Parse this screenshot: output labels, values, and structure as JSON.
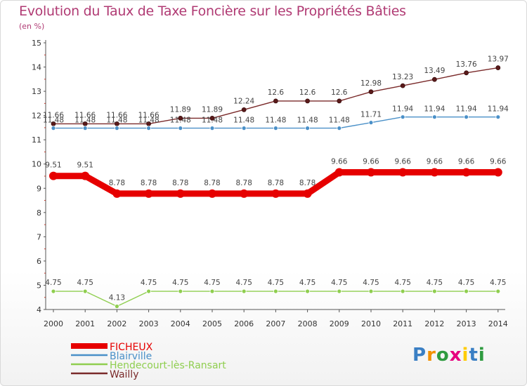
{
  "chart_data": {
    "type": "line",
    "title": "Evolution du Taux de Taxe Foncière sur les Propriétés Bâties",
    "subtitle": "(en %)",
    "xlabel": "",
    "ylabel": "",
    "x": [
      "2000",
      "2001",
      "2002",
      "2003",
      "2004",
      "2005",
      "2006",
      "2007",
      "2008",
      "2009",
      "2010",
      "2011",
      "2012",
      "2013",
      "2014"
    ],
    "ylim": [
      4,
      15
    ],
    "yticks": [
      "4",
      "5",
      "6",
      "7",
      "8",
      "9",
      "10",
      "11",
      "12",
      "13",
      "14",
      "15"
    ],
    "grid": false,
    "legend_position": "bottom-left",
    "series": [
      {
        "name": "FICHEUX",
        "color": "#e60000",
        "values": [
          9.51,
          9.51,
          8.78,
          8.78,
          8.78,
          8.78,
          8.78,
          8.78,
          8.78,
          9.66,
          9.66,
          9.66,
          9.66,
          9.66,
          9.66
        ],
        "labels": [
          "9.51",
          "9.51",
          "8.78",
          "8.78",
          "8.78",
          "8.78",
          "8.78",
          "8.78",
          "8.78",
          "9.66",
          "9.66",
          "9.66",
          "9.66",
          "9.66",
          "9.66"
        ]
      },
      {
        "name": "Blairville",
        "color": "#4a90c8",
        "values": [
          11.48,
          11.48,
          11.48,
          11.48,
          11.48,
          11.48,
          11.48,
          11.48,
          11.48,
          11.48,
          11.71,
          11.94,
          11.94,
          11.94,
          11.94
        ],
        "labels": [
          "11.48",
          "11.48",
          "11.48",
          "11.48",
          "11.48",
          "11.48",
          "11.48",
          "11.48",
          "11.48",
          "11.48",
          "11.71",
          "11.94",
          "11.94",
          "11.94",
          "11.94"
        ]
      },
      {
        "name": "Hendecourt-lès-Ransart",
        "color": "#8fce4f",
        "values": [
          4.75,
          4.75,
          4.13,
          4.75,
          4.75,
          4.75,
          4.75,
          4.75,
          4.75,
          4.75,
          4.75,
          4.75,
          4.75,
          4.75,
          4.75
        ],
        "labels": [
          "4.75",
          "4.75",
          "4.13",
          "4.75",
          "4.75",
          "4.75",
          "4.75",
          "4.75",
          "4.75",
          "4.75",
          "4.75",
          "4.75",
          "4.75",
          "4.75",
          "4.75"
        ]
      },
      {
        "name": "Wailly",
        "color": "#7a2a2a",
        "values": [
          11.66,
          11.66,
          11.66,
          11.66,
          11.89,
          11.89,
          12.24,
          12.6,
          12.6,
          12.6,
          12.98,
          13.23,
          13.49,
          13.76,
          13.97
        ],
        "labels": [
          "11.66",
          "11.66",
          "11.66",
          "11.66",
          "11.89",
          "11.89",
          "12.24",
          "12.6",
          "12.6",
          "12.6",
          "12.98",
          "13.23",
          "13.49",
          "13.76",
          "13.97"
        ]
      }
    ]
  },
  "branding": {
    "logo_letters": [
      "P",
      "r",
      "o",
      "x",
      "i",
      "t",
      "i"
    ]
  }
}
